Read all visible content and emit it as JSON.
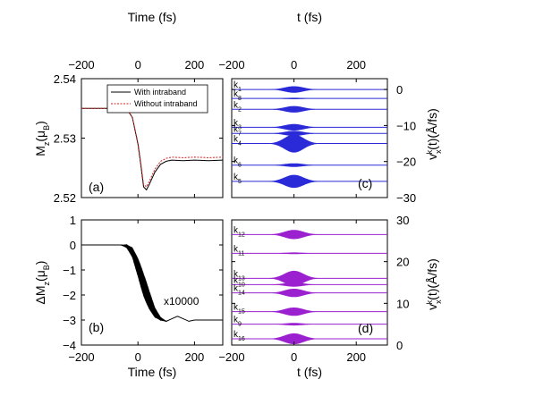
{
  "chart_data": [
    {
      "id": "a",
      "type": "line",
      "panel_label": "(a)",
      "xlabel": "",
      "top_xlabel": "Time (fs)",
      "ylabel": "M_z(μ_B)",
      "xlim": [
        -200,
        300
      ],
      "ylim": [
        2.52,
        2.54
      ],
      "xticks": [
        -200,
        0,
        200
      ],
      "yticks": [
        2.52,
        2.53,
        2.54
      ],
      "legend": {
        "placement": "top-right",
        "entries": [
          "With intraband",
          "Without intraband"
        ]
      },
      "series": [
        {
          "name": "With intraband",
          "color": "#000000",
          "x": [
            -200,
            -60,
            -40,
            -20,
            0,
            10,
            20,
            30,
            40,
            60,
            80,
            100,
            120,
            160,
            200,
            250,
            300
          ],
          "y": [
            2.535,
            2.535,
            2.5349,
            2.5335,
            2.529,
            2.5255,
            2.5218,
            2.5213,
            2.5222,
            2.5243,
            2.5256,
            2.5261,
            2.5263,
            2.5262,
            2.5263,
            2.5262,
            2.5263
          ]
        },
        {
          "name": "Without intraband",
          "color": "#d02020",
          "x": [
            -200,
            -60,
            -40,
            -20,
            0,
            10,
            20,
            30,
            40,
            60,
            80,
            100,
            120,
            160,
            200,
            250,
            300
          ],
          "y": [
            2.535,
            2.535,
            2.5349,
            2.5335,
            2.5292,
            2.5258,
            2.5222,
            2.5218,
            2.5227,
            2.5248,
            2.5261,
            2.5266,
            2.5268,
            2.5267,
            2.5268,
            2.5267,
            2.5268
          ]
        }
      ]
    },
    {
      "id": "b",
      "type": "line",
      "panel_label": "(b)",
      "xlabel": "Time (fs)",
      "ylabel": "ΔM_z(μ_B)",
      "annotation": "x10000",
      "xlim": [
        -200,
        300
      ],
      "ylim": [
        -4,
        1
      ],
      "xticks": [
        -200,
        0,
        200
      ],
      "yticks": [
        -4,
        -3,
        -2,
        -1,
        0,
        1
      ],
      "series": [
        {
          "color": "#000000",
          "x": [
            -200,
            -60,
            -40,
            -20,
            0,
            20,
            40,
            60,
            80,
            100,
            120,
            140,
            160,
            180,
            200,
            250,
            300
          ],
          "y": [
            0,
            0,
            -0.05,
            -0.3,
            -0.9,
            -1.6,
            -2.2,
            -2.7,
            -2.95,
            -3.05,
            -2.95,
            -2.85,
            -2.95,
            -3.05,
            -3.0,
            -3.0,
            -3.0
          ]
        }
      ]
    },
    {
      "id": "c",
      "type": "line",
      "panel_label": "(c)",
      "top_xlabel": "t (fs)",
      "ylabel": "v_x^k(t)(Å/fs)",
      "xlim": [
        -200,
        300
      ],
      "ylim": [
        -30,
        3
      ],
      "xticks": [
        -200,
        0,
        200
      ],
      "yticks": [
        0,
        -10,
        -20,
        -30
      ],
      "color": "#2a2ad8",
      "series": [
        {
          "name": "k1",
          "offset": 0,
          "amplitude": 0.9
        },
        {
          "name": "k8",
          "offset": -2.5,
          "amplitude": 0.2
        },
        {
          "name": "k2",
          "offset": -5.5,
          "amplitude": 0.9
        },
        {
          "name": "k3",
          "offset": -10.5,
          "amplitude": 0.9
        },
        {
          "name": "k7",
          "offset": -12.2,
          "amplitude": 0.7
        },
        {
          "name": "k4",
          "offset": -15,
          "amplitude": 2.5
        },
        {
          "name": "k6",
          "offset": -21,
          "amplitude": 0.5
        },
        {
          "name": "k5",
          "offset": -25.5,
          "amplitude": 1.8
        }
      ]
    },
    {
      "id": "d",
      "type": "line",
      "panel_label": "(d)",
      "xlabel": "t (fs)",
      "ylabel": "v_x^k(t)(Å/fs)",
      "xlim": [
        -200,
        300
      ],
      "ylim": [
        0,
        30
      ],
      "xticks": [
        -200,
        0,
        200
      ],
      "yticks": [
        0,
        10,
        20,
        30
      ],
      "color": "#9a20d0",
      "series": [
        {
          "name": "k12",
          "offset": 26.5,
          "amplitude": 1.1
        },
        {
          "name": "k11",
          "offset": 22,
          "amplitude": 0.2
        },
        {
          "name": "k13",
          "offset": 16,
          "amplitude": 1.8
        },
        {
          "name": "k10",
          "offset": 14.5,
          "amplitude": 0.5
        },
        {
          "name": "k14",
          "offset": 12.5,
          "amplitude": 1.0
        },
        {
          "name": "k15",
          "offset": 8,
          "amplitude": 1.0
        },
        {
          "name": "k9",
          "offset": 5,
          "amplitude": 0.3
        },
        {
          "name": "k16",
          "offset": 1.5,
          "amplitude": 1.3
        }
      ]
    }
  ]
}
